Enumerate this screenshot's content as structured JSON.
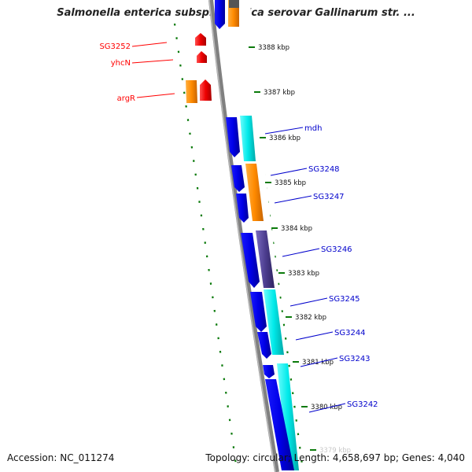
{
  "title": "Salmonella enterica subsp. enterica serovar Gallinarum str. ...",
  "footer": {
    "accession": "Accession: NC_011274",
    "topology": "Topology: circular; Length: 4,658,697 bp; Genes: 4,040"
  },
  "ticks": [
    {
      "kbp": 3388,
      "label": "3388 kbp"
    },
    {
      "kbp": 3387,
      "label": "3387 kbp"
    },
    {
      "kbp": 3386,
      "label": "3386 kbp"
    },
    {
      "kbp": 3385,
      "label": "3385 kbp"
    },
    {
      "kbp": 3384,
      "label": "3384 kbp"
    },
    {
      "kbp": 3383,
      "label": "3383 kbp"
    },
    {
      "kbp": 3382,
      "label": "3382 kbp"
    },
    {
      "kbp": 3381,
      "label": "3381 kbp"
    },
    {
      "kbp": 3380,
      "label": "3380 kbp"
    },
    {
      "kbp": 3379,
      "label": "3379 kbp"
    }
  ],
  "genes": [
    {
      "label": "SG3252",
      "strand": "reverse",
      "color": "#ff0000"
    },
    {
      "label": "yhcN",
      "strand": "reverse",
      "color": "#ff0000"
    },
    {
      "label": "argR",
      "strand": "reverse",
      "color": "#ff0000"
    },
    {
      "label": "mdh",
      "strand": "forward",
      "color": "#0000cc"
    },
    {
      "label": "SG3248",
      "strand": "forward",
      "color": "#0000cc"
    },
    {
      "label": "SG3247",
      "strand": "forward",
      "color": "#0000cc"
    },
    {
      "label": "SG3246",
      "strand": "forward",
      "color": "#0000cc"
    },
    {
      "label": "SG3245",
      "strand": "forward",
      "color": "#0000cc"
    },
    {
      "label": "SG3244",
      "strand": "forward",
      "color": "#0000cc"
    },
    {
      "label": "SG3243",
      "strand": "forward",
      "color": "#0000cc"
    },
    {
      "label": "SG3242",
      "strand": "forward",
      "color": "#0000cc"
    }
  ],
  "colors": {
    "forward_cds": "#0000e0",
    "reverse_cds": "#ff0000",
    "cog_orange": "#ff8c00",
    "cog_cyan": "#00e5e5",
    "cog_purple": "#4b3b8c",
    "backbone": "#808080",
    "gc_skew": "#006600"
  }
}
